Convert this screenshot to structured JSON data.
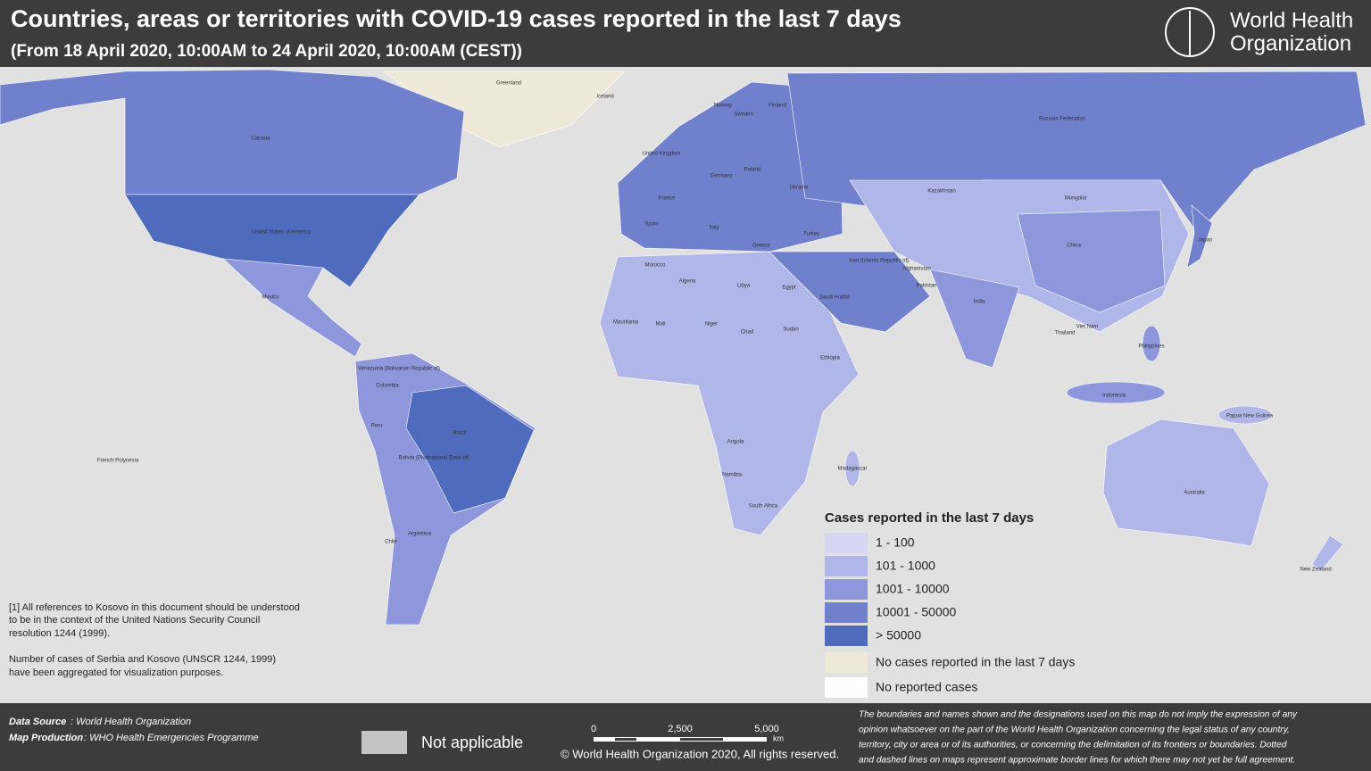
{
  "header": {
    "title": "Countries, areas or territories with COVID-19 cases reported in the last 7 days",
    "subtitle": "(From 18 April 2020, 10:00AM  to 24 April 2020, 10:00AM (CEST))",
    "org": [
      "World Health",
      "Organization"
    ]
  },
  "legend": {
    "title": "Cases reported in the last 7 days",
    "items": [
      {
        "label": "1 - 100",
        "color": "#d5d7f3"
      },
      {
        "label": "101 - 1000",
        "color": "#b1b6e8"
      },
      {
        "label": "1001 - 10000",
        "color": "#8e97dc"
      },
      {
        "label": "10001 - 50000",
        "color": "#7080cd"
      },
      {
        "label": "> 50000",
        "color": "#4f6bbd"
      },
      {
        "label": "No cases reported in the last 7 days",
        "color": "#efe9d9"
      },
      {
        "label": "No reported cases",
        "color": "#ffffff"
      }
    ]
  },
  "notes": [
    "[1] All references to Kosovo in this document should be understood",
    "to be in the context of the United Nations Security Council",
    "resolution 1244 (1999).",
    "Number of cases of Serbia and Kosovo (UNSCR 1244, 1999)",
    " have been aggregated for visualization purposes."
  ],
  "map_labels": [
    "Greenland",
    "Iceland",
    "Canada",
    "United States of America",
    "Mexico",
    "Russian Federation",
    "Kazakhstan",
    "Mongolia",
    "China",
    "India",
    "Brazil",
    "Argentina",
    "Peru",
    "Colombia",
    "Chile",
    "Algeria",
    "Libya",
    "Egypt",
    "Niger",
    "Chad",
    "Sudan",
    "Mali",
    "Angola",
    "South Africa",
    "Ethiopia",
    "Australia",
    "New Zealand",
    "Japan",
    "Indonesia",
    "Saudi Arabia",
    "Turkey",
    "Ukraine",
    "Norway",
    "Sweden",
    "Finland",
    "Poland",
    "Germany",
    "France",
    "Spain",
    "Italy",
    "Iran (Islamic Republic of)",
    "Afghanistan",
    "Pakistan",
    "Papua New Guinea",
    "French Polynesia",
    "Bolivia (Plurinational State of)",
    "Venezuela (Bolivarian Republic of)",
    "Namibia",
    "Madagascar",
    "Philippines",
    "Mauritania",
    "Morocco",
    "United Kingdom",
    "Greece",
    "Viet Nam",
    "Thailand"
  ],
  "footer": {
    "data_source_label": "Data Source",
    "data_source": ": World Health Organization",
    "production_label": "Map Production",
    "production": ": WHO Health Emergencies Programme",
    "not_applicable": "Not applicable",
    "scale": [
      "0",
      "2,500",
      "5,000",
      "km"
    ],
    "copyright": "© World Health Organization  2020,  All rights reserved.",
    "disclaimer": [
      "The boundaries and names shown and the designations used on this map do not imply the expression of any",
      "opinion whatsoever on the part of the World Health Organization concerning the legal status of any country,",
      "territory, city or area or of its authorities, or concerning the delimitation of its frontiers or boundaries. Dotted",
      "and dashed lines on maps represent approximate border lines for which there may not yet be full agreement."
    ]
  }
}
